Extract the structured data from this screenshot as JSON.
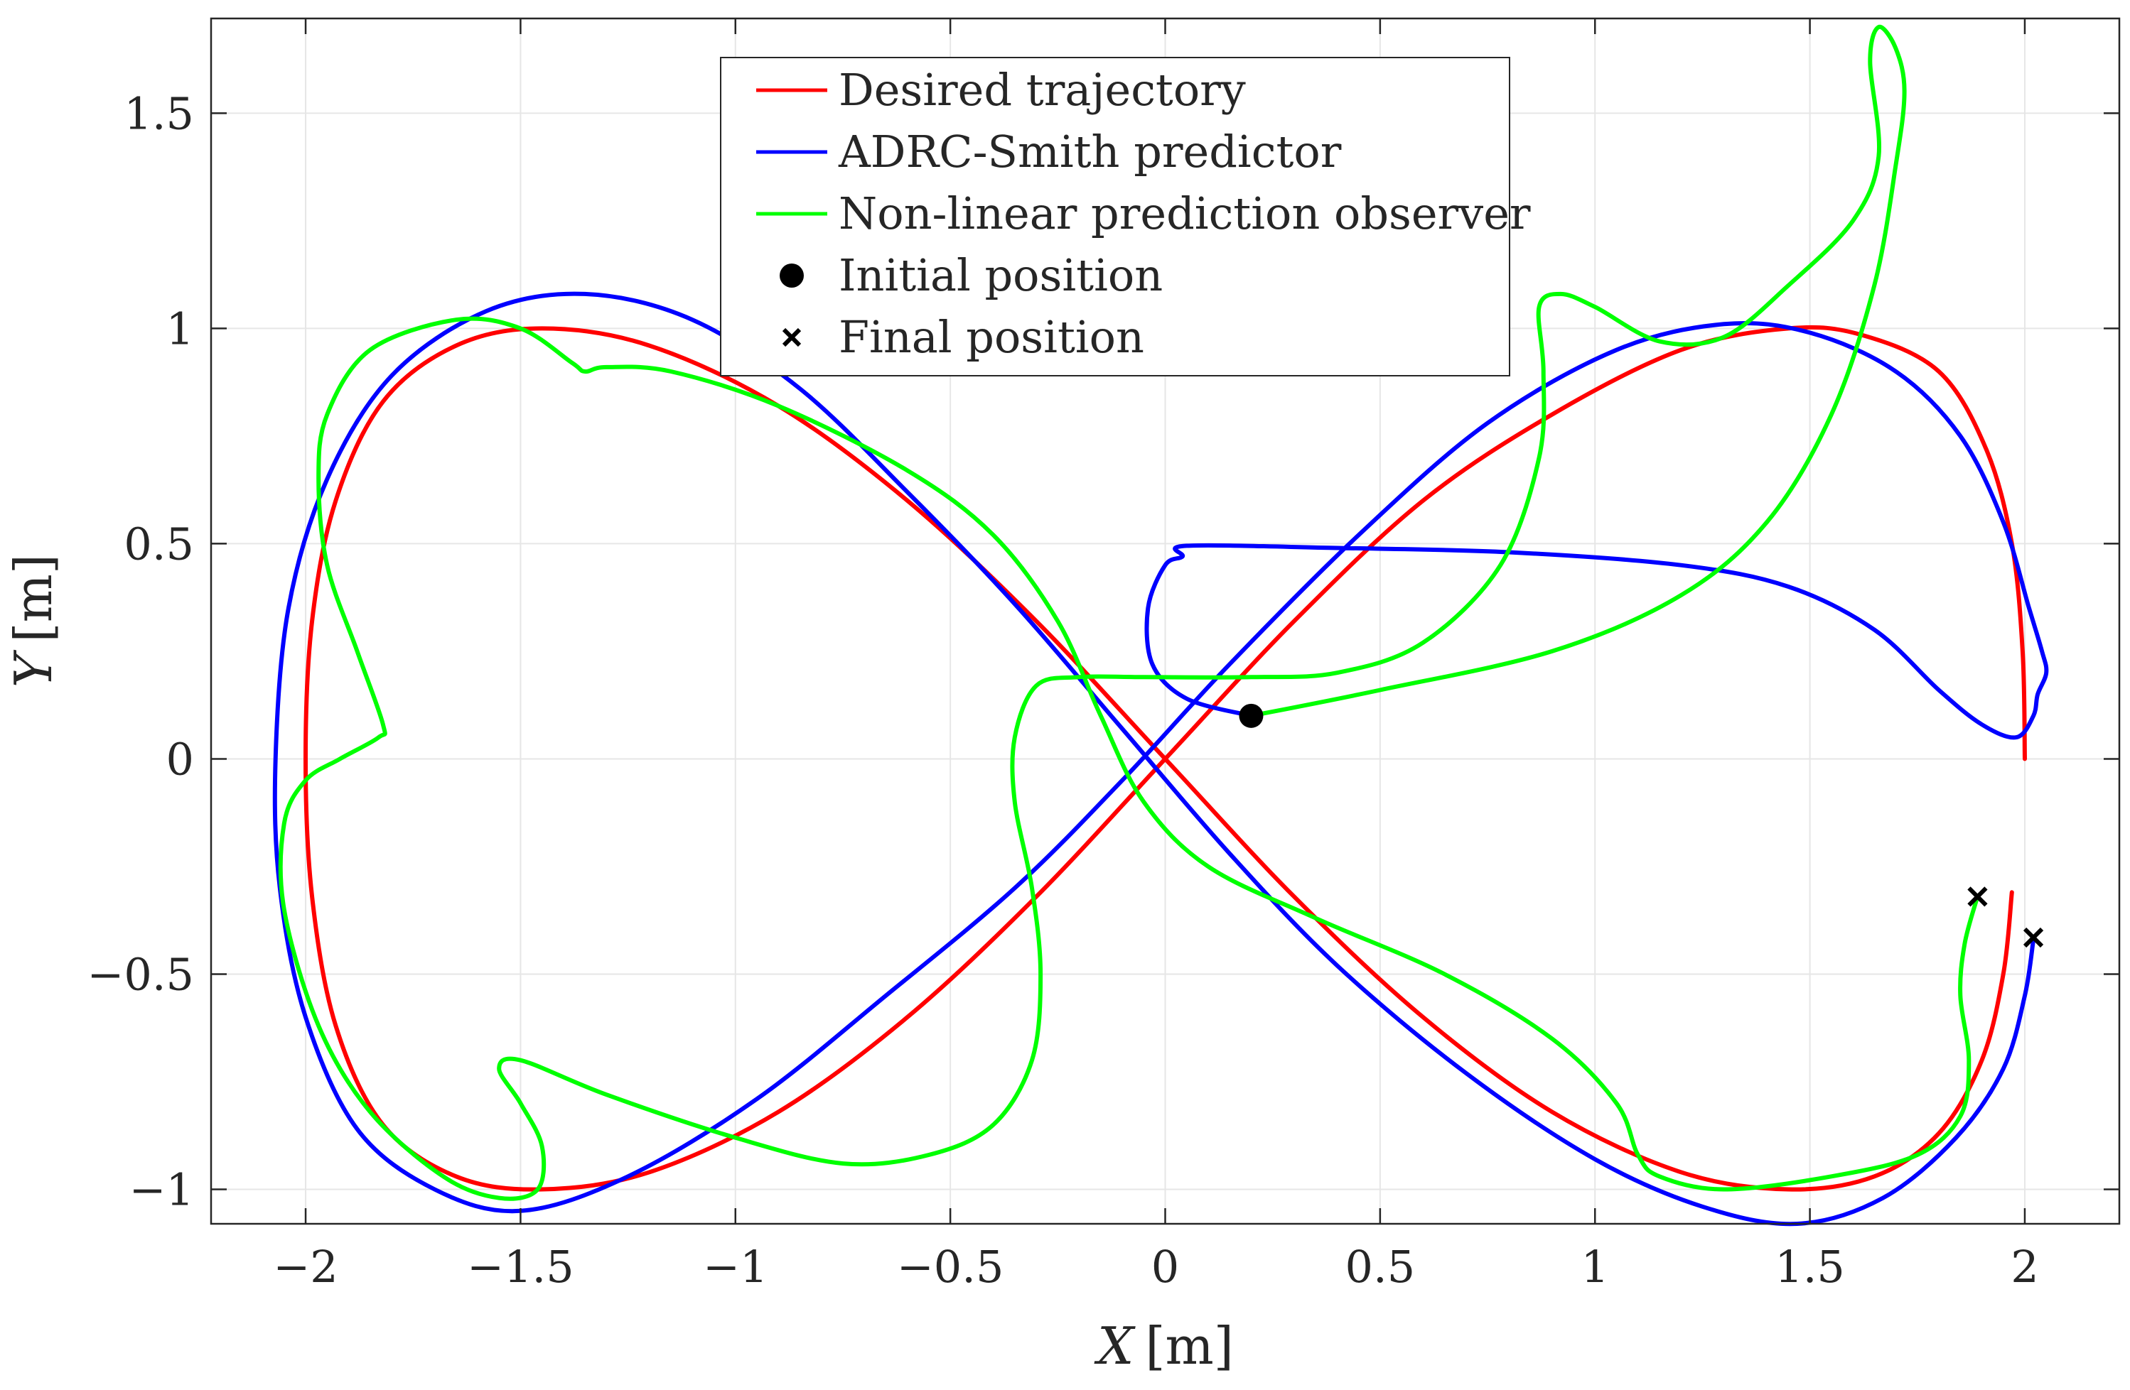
{
  "chart_data": {
    "type": "line",
    "xlabel_var": "X",
    "xlabel_unit": "[m]",
    "ylabel_var": "Y",
    "ylabel_unit": "[m]",
    "xlim": [
      -2.22,
      2.22
    ],
    "ylim": [
      -1.08,
      1.72
    ],
    "xticks": [
      -2,
      -1.5,
      -1,
      -0.5,
      0,
      0.5,
      1,
      1.5,
      2
    ],
    "xtick_labels": [
      "−2",
      "−1.5",
      "−1",
      "−0.5",
      "0",
      "0.5",
      "1",
      "1.5",
      "2"
    ],
    "yticks": [
      -1,
      -0.5,
      0,
      0.5,
      1,
      1.5
    ],
    "ytick_labels": [
      "−1",
      "−0.5",
      "0",
      "0.5",
      "1",
      "1.5"
    ],
    "grid": true,
    "legend_position": "top-center",
    "series": [
      {
        "name": "Desired trajectory",
        "color": "#ff0000",
        "points": [
          [
            2.0,
            0.0
          ],
          [
            1.995,
            0.25
          ],
          [
            1.97,
            0.5
          ],
          [
            1.91,
            0.72
          ],
          [
            1.8,
            0.9
          ],
          [
            1.62,
            0.985
          ],
          [
            1.45,
            1.0
          ],
          [
            1.2,
            0.95
          ],
          [
            0.9,
            0.8
          ],
          [
            0.6,
            0.6
          ],
          [
            0.3,
            0.32
          ],
          [
            0.0,
            0.0
          ],
          [
            -0.3,
            -0.32
          ],
          [
            -0.6,
            -0.6
          ],
          [
            -0.9,
            -0.82
          ],
          [
            -1.2,
            -0.96
          ],
          [
            -1.45,
            -1.0
          ],
          [
            -1.65,
            -0.97
          ],
          [
            -1.82,
            -0.85
          ],
          [
            -1.93,
            -0.62
          ],
          [
            -1.985,
            -0.32
          ],
          [
            -2.0,
            0.0
          ],
          [
            -1.985,
            0.32
          ],
          [
            -1.93,
            0.6
          ],
          [
            -1.82,
            0.83
          ],
          [
            -1.65,
            0.96
          ],
          [
            -1.45,
            1.0
          ],
          [
            -1.2,
            0.96
          ],
          [
            -0.9,
            0.82
          ],
          [
            -0.6,
            0.6
          ],
          [
            -0.3,
            0.32
          ],
          [
            0.0,
            0.0
          ],
          [
            0.3,
            -0.32
          ],
          [
            0.6,
            -0.6
          ],
          [
            0.9,
            -0.82
          ],
          [
            1.2,
            -0.96
          ],
          [
            1.45,
            -1.0
          ],
          [
            1.65,
            -0.97
          ],
          [
            1.8,
            -0.87
          ],
          [
            1.9,
            -0.7
          ],
          [
            1.95,
            -0.5
          ],
          [
            1.97,
            -0.31
          ]
        ]
      },
      {
        "name": "ADRC-Smith predictor",
        "color": "#0000ff",
        "points": [
          [
            0.2,
            0.1
          ],
          [
            0.05,
            0.14
          ],
          [
            -0.03,
            0.22
          ],
          [
            -0.04,
            0.35
          ],
          [
            0.0,
            0.45
          ],
          [
            0.04,
            0.47
          ],
          [
            0.05,
            0.495
          ],
          [
            0.4,
            0.49
          ],
          [
            0.8,
            0.48
          ],
          [
            1.2,
            0.45
          ],
          [
            1.45,
            0.4
          ],
          [
            1.65,
            0.3
          ],
          [
            1.8,
            0.16
          ],
          [
            1.9,
            0.08
          ],
          [
            1.98,
            0.05
          ],
          [
            2.02,
            0.1
          ],
          [
            2.03,
            0.15
          ],
          [
            2.05,
            0.2
          ],
          [
            2.04,
            0.25
          ],
          [
            2.01,
            0.35
          ],
          [
            1.95,
            0.55
          ],
          [
            1.85,
            0.75
          ],
          [
            1.7,
            0.9
          ],
          [
            1.5,
            0.99
          ],
          [
            1.3,
            1.01
          ],
          [
            1.05,
            0.95
          ],
          [
            0.75,
            0.78
          ],
          [
            0.45,
            0.52
          ],
          [
            0.15,
            0.22
          ],
          [
            -0.1,
            -0.05
          ],
          [
            -0.35,
            -0.3
          ],
          [
            -0.65,
            -0.55
          ],
          [
            -0.95,
            -0.79
          ],
          [
            -1.25,
            -0.97
          ],
          [
            -1.5,
            -1.05
          ],
          [
            -1.7,
            -1.0
          ],
          [
            -1.88,
            -0.86
          ],
          [
            -2.0,
            -0.6
          ],
          [
            -2.06,
            -0.3
          ],
          [
            -2.07,
            0.0
          ],
          [
            -2.04,
            0.35
          ],
          [
            -1.95,
            0.65
          ],
          [
            -1.8,
            0.89
          ],
          [
            -1.58,
            1.04
          ],
          [
            -1.35,
            1.08
          ],
          [
            -1.1,
            1.02
          ],
          [
            -0.85,
            0.86
          ],
          [
            -0.6,
            0.62
          ],
          [
            -0.35,
            0.36
          ],
          [
            -0.1,
            0.07
          ],
          [
            0.15,
            -0.22
          ],
          [
            0.4,
            -0.48
          ],
          [
            0.7,
            -0.73
          ],
          [
            1.0,
            -0.93
          ],
          [
            1.25,
            -1.04
          ],
          [
            1.47,
            -1.08
          ],
          [
            1.67,
            -1.02
          ],
          [
            1.84,
            -0.88
          ],
          [
            1.95,
            -0.72
          ],
          [
            2.0,
            -0.55
          ],
          [
            2.02,
            -0.42
          ]
        ]
      },
      {
        "name": "Non-linear prediction observer",
        "color": "#00ff00",
        "points": [
          [
            0.2,
            0.1
          ],
          [
            0.5,
            0.16
          ],
          [
            0.9,
            0.25
          ],
          [
            1.2,
            0.38
          ],
          [
            1.4,
            0.55
          ],
          [
            1.55,
            0.8
          ],
          [
            1.65,
            1.1
          ],
          [
            1.7,
            1.38
          ],
          [
            1.72,
            1.55
          ],
          [
            1.7,
            1.65
          ],
          [
            1.66,
            1.7
          ],
          [
            1.64,
            1.62
          ],
          [
            1.66,
            1.4
          ],
          [
            1.6,
            1.25
          ],
          [
            1.45,
            1.1
          ],
          [
            1.3,
            0.98
          ],
          [
            1.15,
            0.97
          ],
          [
            1.0,
            1.05
          ],
          [
            0.92,
            1.08
          ],
          [
            0.87,
            1.05
          ],
          [
            0.88,
            0.9
          ],
          [
            0.87,
            0.7
          ],
          [
            0.78,
            0.45
          ],
          [
            0.6,
            0.27
          ],
          [
            0.4,
            0.2
          ],
          [
            0.2,
            0.19
          ],
          [
            -0.05,
            0.19
          ],
          [
            -0.2,
            0.19
          ],
          [
            -0.3,
            0.17
          ],
          [
            -0.35,
            0.05
          ],
          [
            -0.35,
            -0.1
          ],
          [
            -0.31,
            -0.3
          ],
          [
            -0.29,
            -0.5
          ],
          [
            -0.31,
            -0.7
          ],
          [
            -0.4,
            -0.85
          ],
          [
            -0.55,
            -0.92
          ],
          [
            -0.75,
            -0.94
          ],
          [
            -1.0,
            -0.88
          ],
          [
            -1.3,
            -0.78
          ],
          [
            -1.5,
            -0.7
          ],
          [
            -1.55,
            -0.72
          ],
          [
            -1.5,
            -0.8
          ],
          [
            -1.45,
            -0.9
          ],
          [
            -1.46,
            -1.0
          ],
          [
            -1.55,
            -1.02
          ],
          [
            -1.68,
            -0.97
          ],
          [
            -1.85,
            -0.82
          ],
          [
            -1.97,
            -0.62
          ],
          [
            -2.05,
            -0.35
          ],
          [
            -2.05,
            -0.15
          ],
          [
            -2.0,
            -0.05
          ],
          [
            -1.92,
            0.0
          ],
          [
            -1.83,
            0.05
          ],
          [
            -1.82,
            0.08
          ],
          [
            -1.88,
            0.25
          ],
          [
            -1.95,
            0.45
          ],
          [
            -1.97,
            0.65
          ],
          [
            -1.95,
            0.8
          ],
          [
            -1.85,
            0.95
          ],
          [
            -1.65,
            1.02
          ],
          [
            -1.5,
            1.0
          ],
          [
            -1.38,
            0.92
          ],
          [
            -1.35,
            0.9
          ],
          [
            -1.3,
            0.91
          ],
          [
            -1.15,
            0.9
          ],
          [
            -0.9,
            0.82
          ],
          [
            -0.6,
            0.67
          ],
          [
            -0.4,
            0.52
          ],
          [
            -0.25,
            0.32
          ],
          [
            -0.15,
            0.1
          ],
          [
            -0.05,
            -0.1
          ],
          [
            0.1,
            -0.25
          ],
          [
            0.35,
            -0.37
          ],
          [
            0.65,
            -0.5
          ],
          [
            0.9,
            -0.65
          ],
          [
            1.05,
            -0.8
          ],
          [
            1.1,
            -0.92
          ],
          [
            1.15,
            -0.97
          ],
          [
            1.3,
            -1.0
          ],
          [
            1.55,
            -0.97
          ],
          [
            1.75,
            -0.92
          ],
          [
            1.85,
            -0.83
          ],
          [
            1.87,
            -0.7
          ],
          [
            1.85,
            -0.55
          ],
          [
            1.86,
            -0.43
          ],
          [
            1.89,
            -0.32
          ]
        ]
      }
    ],
    "markers": [
      {
        "name": "Initial position",
        "shape": "circle",
        "points": [
          [
            0.2,
            0.1
          ]
        ]
      },
      {
        "name": "Final position",
        "shape": "x",
        "points": [
          [
            1.89,
            -0.32
          ],
          [
            2.02,
            -0.415
          ]
        ]
      }
    ]
  }
}
